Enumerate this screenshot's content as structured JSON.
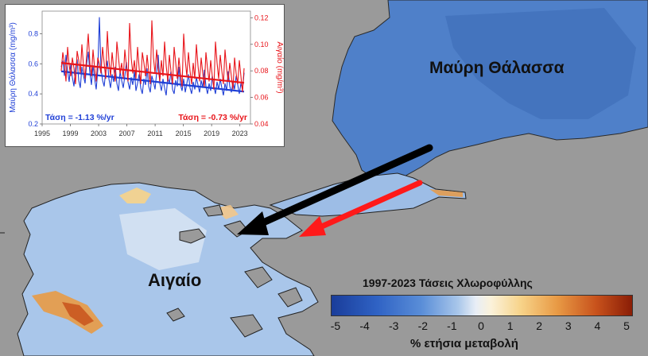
{
  "map": {
    "black_sea_label": "Μαύρη Θάλασσα",
    "aegean_label": "Αιγαίο",
    "colors": {
      "land": "#9a9a9a",
      "black_sea": "#4f80c9",
      "aegean": "#a9c6ea",
      "black_arrow": "#000000",
      "red_arrow": "#ff1a1a"
    }
  },
  "legend": {
    "title": "1997-2023 Τάσεις Χλωροφύλλης",
    "ticks": [
      "-5",
      "-4",
      "-3",
      "-2",
      "-1",
      "0",
      "1",
      "2",
      "3",
      "4",
      "5"
    ],
    "xlabel": "% ετήσια μεταβολή"
  },
  "chart_data": {
    "type": "line",
    "xlabel": "",
    "ylabel_left": "Μαύρη Θάλασσα (mg/m³)",
    "ylabel_right": "Αιγαίο (mg/m³)",
    "x_ticks": [
      "1995",
      "1999",
      "2003",
      "2007",
      "2011",
      "2015",
      "2019",
      "2023"
    ],
    "xlim": [
      1995,
      2024.5
    ],
    "y_left_ticks": [
      "0.2",
      "0.4",
      "0.6",
      "0.8"
    ],
    "ylim_left": [
      0.2,
      0.95
    ],
    "y_right_ticks": [
      "0.04",
      "0.06",
      "0.08",
      "0.10",
      "0.12"
    ],
    "ylim_right": [
      0.04,
      0.125
    ],
    "series": [
      {
        "name": "Μαύρη Θάλασσα",
        "axis": "left",
        "color": "#1f3fd6",
        "x_start": 1997.7,
        "x_end": 2023.6,
        "values": [
          0.58,
          0.62,
          0.52,
          0.66,
          0.55,
          0.48,
          0.6,
          0.51,
          0.45,
          0.57,
          0.63,
          0.49,
          0.44,
          0.58,
          0.52,
          0.47,
          0.6,
          0.68,
          0.54,
          0.46,
          0.59,
          0.5,
          0.43,
          0.56,
          0.91,
          0.57,
          0.49,
          0.45,
          0.55,
          0.62,
          0.5,
          0.44,
          0.53,
          0.48,
          0.58,
          0.47,
          0.42,
          0.55,
          0.49,
          0.44,
          0.52,
          0.61,
          0.48,
          0.43,
          0.51,
          0.46,
          0.55,
          0.42,
          0.47,
          0.53,
          0.44,
          0.4,
          0.5,
          0.46,
          0.57,
          0.45,
          0.41,
          0.52,
          0.48,
          0.43,
          0.54,
          0.66,
          0.47,
          0.42,
          0.5,
          0.44,
          0.39,
          0.51,
          0.47,
          0.55,
          0.43,
          0.4,
          0.49,
          0.45,
          0.58,
          0.46,
          0.42,
          0.5,
          0.41,
          0.47,
          0.53,
          0.44,
          0.4,
          0.48,
          0.43,
          0.51,
          0.46,
          0.41,
          0.49,
          0.44,
          0.56,
          0.45,
          0.4,
          0.47,
          0.42,
          0.52,
          0.45,
          0.4,
          0.48,
          0.43,
          0.5,
          0.44,
          0.39,
          0.47,
          0.42,
          0.55,
          0.45,
          0.41,
          0.48,
          0.43,
          0.52,
          0.46,
          0.4,
          0.47,
          0.43,
          0.54
        ],
        "trend_start": 0.55,
        "trend_end": 0.415,
        "trend_label": "Τάση = -1.13 %/yr"
      },
      {
        "name": "Αιγαίο",
        "axis": "right",
        "color": "#e8141a",
        "x_start": 1997.7,
        "x_end": 2023.6,
        "values": [
          0.08,
          0.094,
          0.086,
          0.072,
          0.098,
          0.084,
          0.076,
          0.09,
          0.082,
          0.07,
          0.095,
          0.088,
          0.078,
          0.1,
          0.084,
          0.074,
          0.092,
          0.108,
          0.086,
          0.076,
          0.096,
          0.082,
          0.072,
          0.09,
          0.085,
          0.078,
          0.098,
          0.086,
          0.074,
          0.11,
          0.088,
          0.076,
          0.094,
          0.082,
          0.072,
          0.102,
          0.09,
          0.078,
          0.086,
          0.074,
          0.096,
          0.084,
          0.072,
          0.116,
          0.09,
          0.078,
          0.088,
          0.074,
          0.098,
          0.082,
          0.07,
          0.094,
          0.086,
          0.076,
          0.092,
          0.08,
          0.07,
          0.118,
          0.09,
          0.078,
          0.096,
          0.082,
          0.072,
          0.088,
          0.076,
          0.102,
          0.084,
          0.072,
          0.092,
          0.08,
          0.07,
          0.098,
          0.086,
          0.074,
          0.09,
          0.078,
          0.068,
          0.108,
          0.088,
          0.076,
          0.094,
          0.08,
          0.07,
          0.086,
          0.074,
          0.1,
          0.084,
          0.072,
          0.09,
          0.078,
          0.068,
          0.094,
          0.082,
          0.072,
          0.088,
          0.076,
          0.066,
          0.102,
          0.086,
          0.074,
          0.092,
          0.08,
          0.07,
          0.096,
          0.082,
          0.072,
          0.086,
          0.076,
          0.066,
          0.09,
          0.078,
          0.07,
          0.088,
          0.076,
          0.064,
          0.082
        ],
        "trend_start": 0.086,
        "trend_end": 0.071,
        "trend_label": "Τάση = -0.73 %/yr"
      }
    ]
  }
}
